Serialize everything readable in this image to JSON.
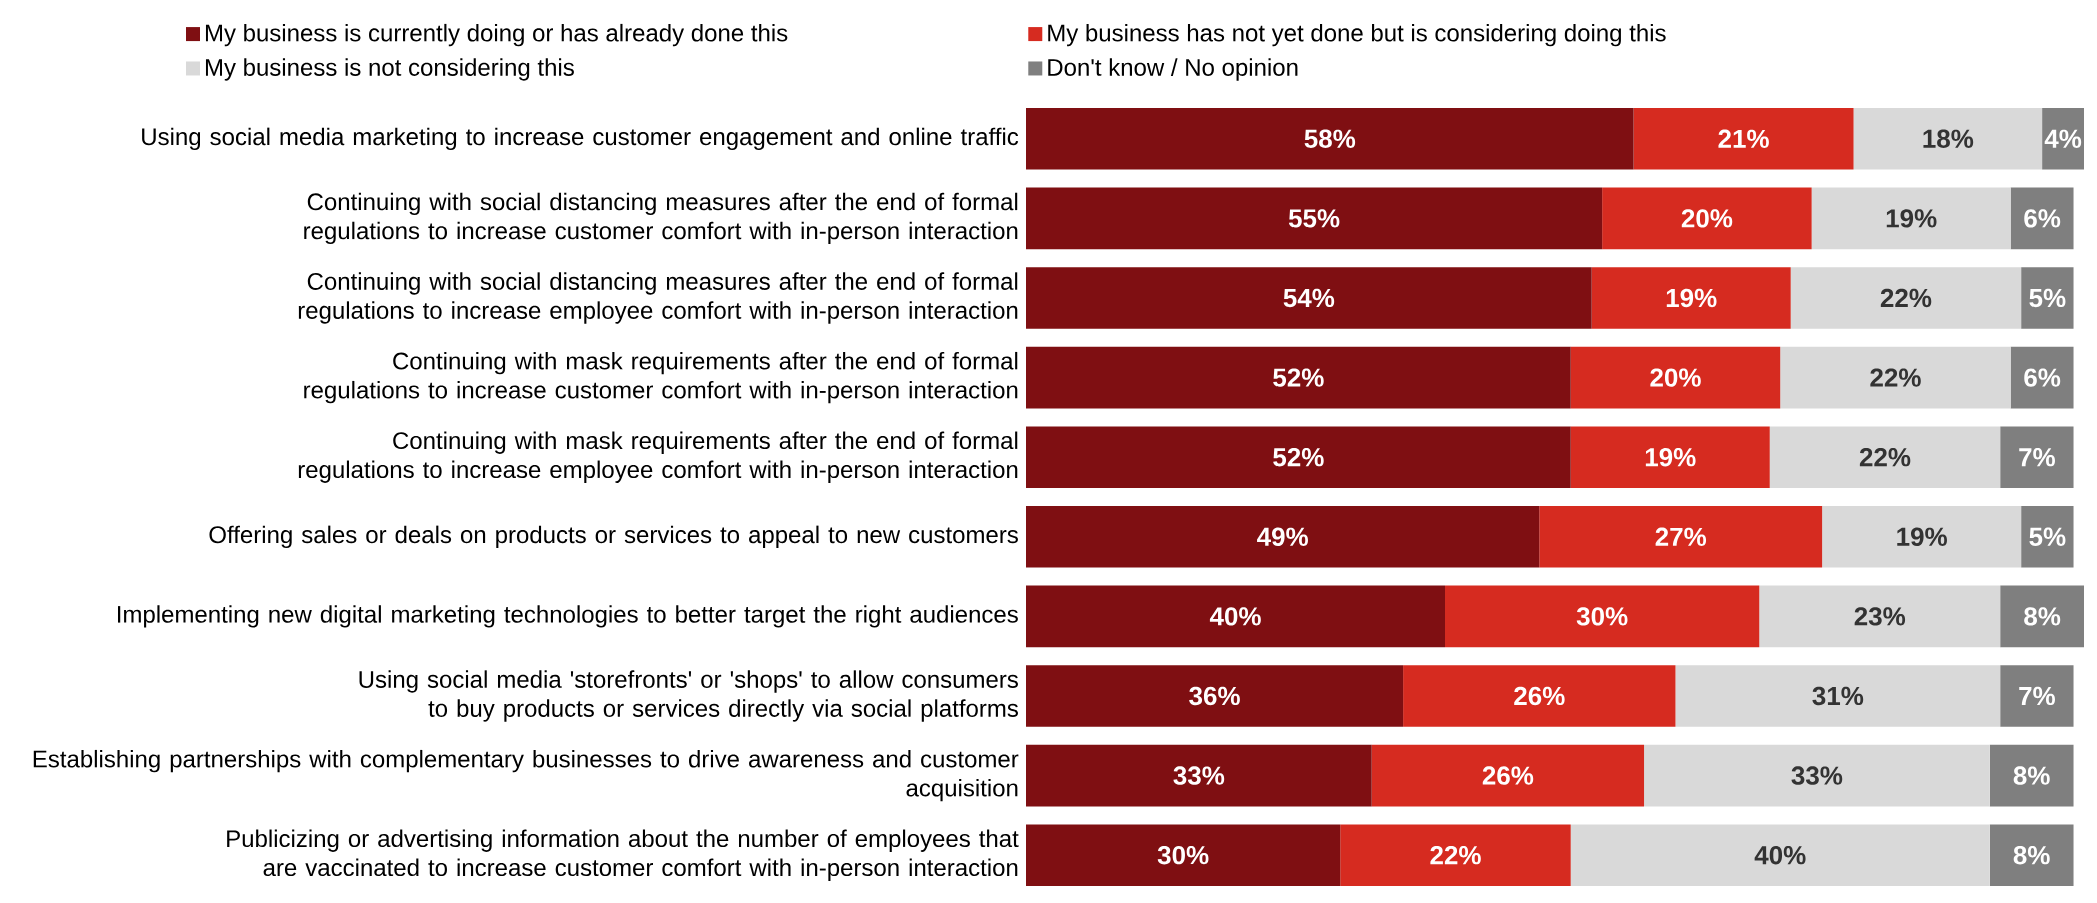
{
  "chart_data": {
    "type": "bar",
    "orientation": "horizontal",
    "stacked": true,
    "legend": "top",
    "tick_labels": "y",
    "categories": [
      "Using social media marketing to increase customer engagement and online traffic",
      "Continuing with social distancing measures after the end of formal regulations to increase customer comfort with in-person interaction",
      "Continuing with social distancing measures after the end of formal regulations to increase employee comfort with in-person interaction",
      "Continuing with mask requirements after the end of formal regulations to increase customer comfort with in-person interaction",
      "Continuing with mask requirements after the end of formal regulations to increase employee comfort with in-person interaction",
      "Offering sales or deals on products or services to appeal to new customers",
      "Implementing new digital marketing technologies to better target the right audiences",
      "Using social media 'storefronts' or 'shops' to allow consumers to buy products or services directly via social platforms",
      "Establishing partnerships with complementary businesses to drive awareness and customer acquisition",
      "Publicizing or advertising information about the number of employees that are vaccinated to increase customer comfort with in-person interaction"
    ],
    "series": [
      {
        "name": "My business is currently doing or has already done this",
        "color": "#7f0f12",
        "values": [
          58,
          55,
          54,
          52,
          52,
          49,
          40,
          36,
          33,
          30
        ],
        "value_labels": [
          "58%",
          "55%",
          "54%",
          "52%",
          "52%",
          "49%",
          "40%",
          "36%",
          "33%",
          "30%"
        ]
      },
      {
        "name": "My business has not yet done but is considering doing this",
        "color": "#d62b20",
        "values": [
          21,
          20,
          19,
          20,
          19,
          27,
          30,
          26,
          26,
          22
        ],
        "value_labels": [
          "21%",
          "20%",
          "19%",
          "20%",
          "19%",
          "27%",
          "30%",
          "26%",
          "26%",
          "22%"
        ]
      },
      {
        "name": "My business is not considering this",
        "color": "#d9d9d9",
        "values": [
          18,
          19,
          22,
          22,
          22,
          19,
          23,
          31,
          33,
          40
        ],
        "value_labels": [
          "18%",
          "19%",
          "22%",
          "22%",
          "22%",
          "19%",
          "23%",
          "31%",
          "33%",
          "40%"
        ]
      },
      {
        "name": "Don't know / No opinion",
        "color": "#7f7f7f",
        "values": [
          4,
          6,
          5,
          6,
          7,
          5,
          8,
          7,
          8,
          8
        ],
        "value_labels": [
          "4%",
          "6%",
          "5%",
          "6%",
          "7%",
          "5%",
          "8%",
          "7%",
          "8%",
          "8%"
        ]
      }
    ]
  }
}
